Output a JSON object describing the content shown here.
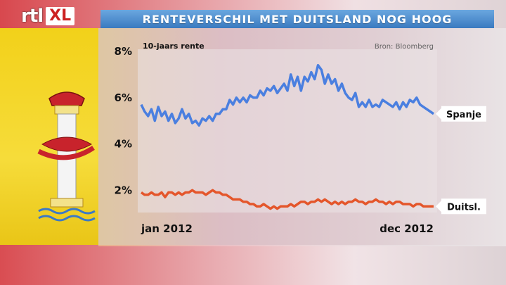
{
  "branding": {
    "logo_rtl": "rtl",
    "logo_xl": "XL"
  },
  "header": {
    "title": "RENTEVERSCHIL MET DUITSLAND NOG HOOG"
  },
  "colors": {
    "spanje": "#4a7fe0",
    "duitsland": "#e4562b",
    "title_bar": "#4b8bd0"
  },
  "chart_data": {
    "type": "line",
    "subtitle": "10-jaars rente",
    "source": "Bron: Bloomberg",
    "ylim": [
      0,
      8
    ],
    "y_ticks": [
      "2%",
      "4%",
      "6%",
      "8%"
    ],
    "y_tick_values": [
      2,
      4,
      6,
      8
    ],
    "x_start_label": "jan 2012",
    "x_end_label": "dec 2012",
    "grid": false,
    "series": [
      {
        "name": "Spanje",
        "color": "#4a7fe0",
        "values": [
          5.7,
          5.4,
          5.2,
          5.5,
          5.0,
          5.6,
          5.2,
          5.4,
          5.0,
          5.3,
          4.9,
          5.1,
          5.5,
          5.1,
          5.3,
          4.9,
          5.0,
          4.8,
          5.1,
          5.0,
          5.2,
          5.0,
          5.3,
          5.3,
          5.5,
          5.5,
          5.9,
          5.7,
          6.0,
          5.8,
          6.0,
          5.8,
          6.1,
          6.0,
          6.0,
          6.3,
          6.1,
          6.4,
          6.3,
          6.5,
          6.2,
          6.4,
          6.6,
          6.3,
          7.0,
          6.5,
          6.9,
          6.3,
          6.9,
          6.7,
          7.1,
          6.8,
          7.4,
          7.2,
          6.6,
          7.0,
          6.6,
          6.8,
          6.3,
          6.6,
          6.2,
          6.0,
          5.9,
          6.2,
          5.6,
          5.8,
          5.6,
          5.9,
          5.6,
          5.7,
          5.6,
          5.9,
          5.8,
          5.7,
          5.6,
          5.8,
          5.5,
          5.8,
          5.6,
          5.9,
          5.8,
          6.0,
          5.7,
          5.6,
          5.5,
          5.4,
          5.3
        ]
      },
      {
        "name": "Duitsl.",
        "color": "#e4562b",
        "values": [
          1.9,
          1.8,
          1.8,
          1.9,
          1.8,
          1.8,
          1.9,
          1.7,
          1.9,
          1.9,
          1.8,
          1.9,
          1.8,
          1.9,
          1.9,
          2.0,
          1.9,
          1.9,
          1.9,
          1.8,
          1.9,
          2.0,
          1.9,
          1.9,
          1.8,
          1.8,
          1.7,
          1.6,
          1.6,
          1.6,
          1.5,
          1.5,
          1.4,
          1.4,
          1.3,
          1.3,
          1.4,
          1.3,
          1.2,
          1.3,
          1.2,
          1.3,
          1.3,
          1.3,
          1.4,
          1.3,
          1.4,
          1.5,
          1.5,
          1.4,
          1.5,
          1.5,
          1.6,
          1.5,
          1.6,
          1.5,
          1.4,
          1.5,
          1.4,
          1.5,
          1.4,
          1.5,
          1.5,
          1.6,
          1.5,
          1.5,
          1.4,
          1.5,
          1.5,
          1.6,
          1.5,
          1.5,
          1.4,
          1.5,
          1.4,
          1.5,
          1.5,
          1.4,
          1.4,
          1.4,
          1.3,
          1.4,
          1.4,
          1.3,
          1.3,
          1.3,
          1.3
        ]
      }
    ]
  }
}
